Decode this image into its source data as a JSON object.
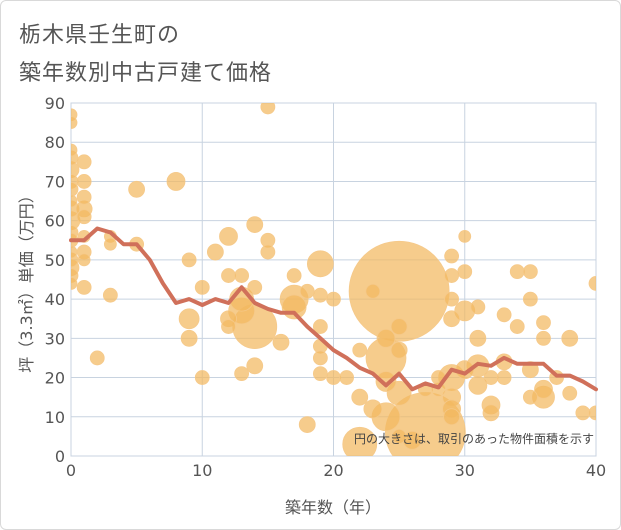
{
  "title_lines": [
    "栃木県壬生町の",
    "築年数別中古戸建て価格"
  ],
  "chart_data": {
    "type": "scatter",
    "title": "栃木県壬生町の築年数別中古戸建て価格",
    "xlabel": "築年数（年）",
    "ylabel": "坪（3.3㎡）単価（万円）",
    "xlim": [
      0,
      40
    ],
    "ylim": [
      0,
      90
    ],
    "xticks": [
      0,
      10,
      20,
      30,
      40
    ],
    "yticks": [
      0,
      10,
      20,
      30,
      40,
      50,
      60,
      70,
      80,
      90
    ],
    "grid": true,
    "note": "円の大きさは、取引のあった物件面積を示す",
    "colors": {
      "bubble": "#f2b860",
      "line": "#d0705a",
      "grid": "#c8d3e0"
    },
    "bubbles": [
      {
        "x": 0,
        "y": 87,
        "s": 6
      },
      {
        "x": 0,
        "y": 85,
        "s": 6
      },
      {
        "x": 0,
        "y": 78,
        "s": 6
      },
      {
        "x": 0,
        "y": 76,
        "s": 7
      },
      {
        "x": 0,
        "y": 73,
        "s": 8
      },
      {
        "x": 0,
        "y": 70,
        "s": 7
      },
      {
        "x": 0,
        "y": 68,
        "s": 7
      },
      {
        "x": 0,
        "y": 65,
        "s": 6
      },
      {
        "x": 0,
        "y": 63,
        "s": 8
      },
      {
        "x": 0,
        "y": 60,
        "s": 9
      },
      {
        "x": 0,
        "y": 57,
        "s": 7
      },
      {
        "x": 0,
        "y": 55,
        "s": 7
      },
      {
        "x": 0,
        "y": 52,
        "s": 6
      },
      {
        "x": 0,
        "y": 50,
        "s": 7
      },
      {
        "x": 0,
        "y": 48,
        "s": 8
      },
      {
        "x": 0,
        "y": 46,
        "s": 7
      },
      {
        "x": 0,
        "y": 44,
        "s": 6
      },
      {
        "x": 1,
        "y": 75,
        "s": 7
      },
      {
        "x": 1,
        "y": 70,
        "s": 7
      },
      {
        "x": 1,
        "y": 66,
        "s": 7
      },
      {
        "x": 1,
        "y": 63,
        "s": 8
      },
      {
        "x": 1,
        "y": 61,
        "s": 7
      },
      {
        "x": 1,
        "y": 56,
        "s": 6
      },
      {
        "x": 1,
        "y": 52,
        "s": 7
      },
      {
        "x": 1,
        "y": 50,
        "s": 6
      },
      {
        "x": 1,
        "y": 43,
        "s": 7
      },
      {
        "x": 2,
        "y": 25,
        "s": 7
      },
      {
        "x": 3,
        "y": 41,
        "s": 7
      },
      {
        "x": 3,
        "y": 56,
        "s": 6
      },
      {
        "x": 3,
        "y": 54,
        "s": 6
      },
      {
        "x": 5,
        "y": 68,
        "s": 8
      },
      {
        "x": 5,
        "y": 54,
        "s": 7
      },
      {
        "x": 8,
        "y": 70,
        "s": 9
      },
      {
        "x": 9,
        "y": 50,
        "s": 7
      },
      {
        "x": 9,
        "y": 35,
        "s": 10
      },
      {
        "x": 9,
        "y": 30,
        "s": 8
      },
      {
        "x": 10,
        "y": 43,
        "s": 7
      },
      {
        "x": 10,
        "y": 20,
        "s": 7
      },
      {
        "x": 11,
        "y": 52,
        "s": 8
      },
      {
        "x": 12,
        "y": 56,
        "s": 9
      },
      {
        "x": 12,
        "y": 46,
        "s": 7
      },
      {
        "x": 12,
        "y": 35,
        "s": 8
      },
      {
        "x": 12,
        "y": 33,
        "s": 7
      },
      {
        "x": 13,
        "y": 40,
        "s": 12
      },
      {
        "x": 13,
        "y": 37,
        "s": 13
      },
      {
        "x": 13,
        "y": 21,
        "s": 7
      },
      {
        "x": 13,
        "y": 46,
        "s": 7
      },
      {
        "x": 14,
        "y": 59,
        "s": 8
      },
      {
        "x": 14,
        "y": 43,
        "s": 7
      },
      {
        "x": 14,
        "y": 33,
        "s": 22
      },
      {
        "x": 14,
        "y": 23,
        "s": 8
      },
      {
        "x": 15,
        "y": 89,
        "s": 7
      },
      {
        "x": 15,
        "y": 55,
        "s": 7
      },
      {
        "x": 15,
        "y": 52,
        "s": 7
      },
      {
        "x": 16,
        "y": 29,
        "s": 8
      },
      {
        "x": 17,
        "y": 46,
        "s": 7
      },
      {
        "x": 17,
        "y": 40,
        "s": 14
      },
      {
        "x": 17,
        "y": 38,
        "s": 12
      },
      {
        "x": 18,
        "y": 8,
        "s": 8
      },
      {
        "x": 18,
        "y": 42,
        "s": 7
      },
      {
        "x": 19,
        "y": 49,
        "s": 13
      },
      {
        "x": 19,
        "y": 41,
        "s": 7
      },
      {
        "x": 19,
        "y": 33,
        "s": 7
      },
      {
        "x": 19,
        "y": 28,
        "s": 7
      },
      {
        "x": 19,
        "y": 25,
        "s": 7
      },
      {
        "x": 19,
        "y": 21,
        "s": 7
      },
      {
        "x": 20,
        "y": 40,
        "s": 7
      },
      {
        "x": 20,
        "y": 20,
        "s": 7
      },
      {
        "x": 21,
        "y": 20,
        "s": 7
      },
      {
        "x": 22,
        "y": 27,
        "s": 7
      },
      {
        "x": 22,
        "y": 15,
        "s": 8
      },
      {
        "x": 22,
        "y": 3,
        "s": 17
      },
      {
        "x": 23,
        "y": 42,
        "s": 7
      },
      {
        "x": 23,
        "y": 12,
        "s": 9
      },
      {
        "x": 24,
        "y": 30,
        "s": 9
      },
      {
        "x": 24,
        "y": 25,
        "s": 20
      },
      {
        "x": 24,
        "y": 19,
        "s": 10
      },
      {
        "x": 24,
        "y": 10,
        "s": 14
      },
      {
        "x": 25,
        "y": 42,
        "s": 50
      },
      {
        "x": 25,
        "y": 33,
        "s": 8
      },
      {
        "x": 25,
        "y": 27,
        "s": 8
      },
      {
        "x": 25,
        "y": 16,
        "s": 12
      },
      {
        "x": 25,
        "y": 5,
        "s": 7
      },
      {
        "x": 26,
        "y": 4,
        "s": 9
      },
      {
        "x": 27,
        "y": 17,
        "s": 7
      },
      {
        "x": 27,
        "y": 6,
        "s": 40
      },
      {
        "x": 28,
        "y": 20,
        "s": 7
      },
      {
        "x": 28,
        "y": 17,
        "s": 7
      },
      {
        "x": 29,
        "y": 51,
        "s": 7
      },
      {
        "x": 29,
        "y": 46,
        "s": 7
      },
      {
        "x": 29,
        "y": 40,
        "s": 7
      },
      {
        "x": 29,
        "y": 35,
        "s": 8
      },
      {
        "x": 29,
        "y": 20,
        "s": 13
      },
      {
        "x": 29,
        "y": 15,
        "s": 9
      },
      {
        "x": 29,
        "y": 12,
        "s": 9
      },
      {
        "x": 29,
        "y": 10,
        "s": 8
      },
      {
        "x": 30,
        "y": 56,
        "s": 6
      },
      {
        "x": 30,
        "y": 47,
        "s": 7
      },
      {
        "x": 30,
        "y": 37,
        "s": 10
      },
      {
        "x": 30,
        "y": 22,
        "s": 9
      },
      {
        "x": 31,
        "y": 38,
        "s": 7
      },
      {
        "x": 31,
        "y": 30,
        "s": 8
      },
      {
        "x": 31,
        "y": 23,
        "s": 11
      },
      {
        "x": 31,
        "y": 18,
        "s": 9
      },
      {
        "x": 32,
        "y": 20,
        "s": 7
      },
      {
        "x": 32,
        "y": 13,
        "s": 9
      },
      {
        "x": 32,
        "y": 11,
        "s": 8
      },
      {
        "x": 33,
        "y": 36,
        "s": 7
      },
      {
        "x": 33,
        "y": 24,
        "s": 8
      },
      {
        "x": 33,
        "y": 20,
        "s": 7
      },
      {
        "x": 34,
        "y": 47,
        "s": 7
      },
      {
        "x": 34,
        "y": 33,
        "s": 7
      },
      {
        "x": 35,
        "y": 47,
        "s": 7
      },
      {
        "x": 35,
        "y": 40,
        "s": 7
      },
      {
        "x": 35,
        "y": 22,
        "s": 8
      },
      {
        "x": 35,
        "y": 15,
        "s": 7
      },
      {
        "x": 36,
        "y": 34,
        "s": 7
      },
      {
        "x": 36,
        "y": 30,
        "s": 7
      },
      {
        "x": 36,
        "y": 17,
        "s": 9
      },
      {
        "x": 36,
        "y": 15,
        "s": 11
      },
      {
        "x": 37,
        "y": 20,
        "s": 7
      },
      {
        "x": 38,
        "y": 30,
        "s": 8
      },
      {
        "x": 38,
        "y": 16,
        "s": 7
      },
      {
        "x": 39,
        "y": 11,
        "s": 7
      },
      {
        "x": 40,
        "y": 44,
        "s": 7
      },
      {
        "x": 40,
        "y": 11,
        "s": 7
      }
    ],
    "trend": [
      {
        "x": 0,
        "y": 55
      },
      {
        "x": 1,
        "y": 55
      },
      {
        "x": 2,
        "y": 58
      },
      {
        "x": 3,
        "y": 57
      },
      {
        "x": 4,
        "y": 54
      },
      {
        "x": 5,
        "y": 54
      },
      {
        "x": 6,
        "y": 50
      },
      {
        "x": 7,
        "y": 44
      },
      {
        "x": 8,
        "y": 39
      },
      {
        "x": 9,
        "y": 40
      },
      {
        "x": 10,
        "y": 38.5
      },
      {
        "x": 11,
        "y": 40
      },
      {
        "x": 12,
        "y": 39
      },
      {
        "x": 13,
        "y": 43
      },
      {
        "x": 14,
        "y": 39
      },
      {
        "x": 15,
        "y": 37.5
      },
      {
        "x": 16,
        "y": 36.5
      },
      {
        "x": 17,
        "y": 36.5
      },
      {
        "x": 18,
        "y": 33
      },
      {
        "x": 19,
        "y": 30
      },
      {
        "x": 20,
        "y": 27
      },
      {
        "x": 21,
        "y": 25
      },
      {
        "x": 22,
        "y": 22.5
      },
      {
        "x": 23,
        "y": 21
      },
      {
        "x": 24,
        "y": 18
      },
      {
        "x": 25,
        "y": 21
      },
      {
        "x": 26,
        "y": 17
      },
      {
        "x": 27,
        "y": 18.5
      },
      {
        "x": 28,
        "y": 17.5
      },
      {
        "x": 29,
        "y": 22
      },
      {
        "x": 30,
        "y": 21
      },
      {
        "x": 31,
        "y": 23.5
      },
      {
        "x": 32,
        "y": 23
      },
      {
        "x": 33,
        "y": 25
      },
      {
        "x": 34,
        "y": 23.5
      },
      {
        "x": 35,
        "y": 23.5
      },
      {
        "x": 36,
        "y": 23.5
      },
      {
        "x": 37,
        "y": 20.5
      },
      {
        "x": 38,
        "y": 20.5
      },
      {
        "x": 39,
        "y": 19
      },
      {
        "x": 40,
        "y": 17
      }
    ]
  }
}
